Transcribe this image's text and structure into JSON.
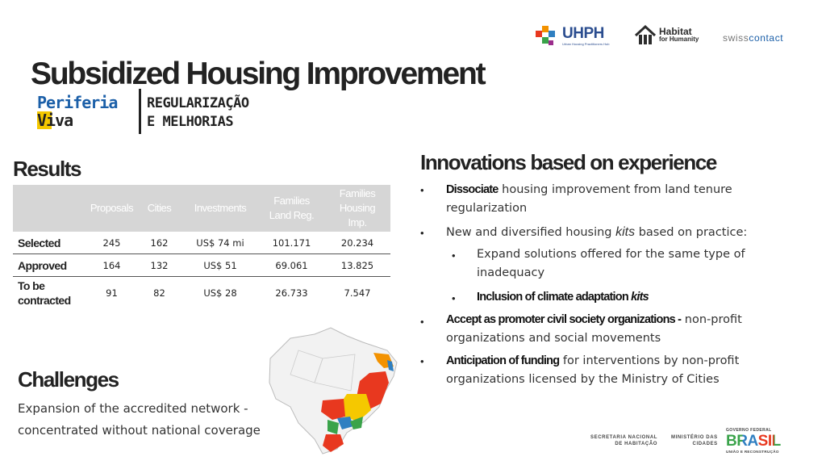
{
  "title": "Subsidized Housing Improvement",
  "brand": {
    "uhph": "UHPH",
    "uhph_sub": "Urban Housing Practitioners Hub",
    "habitat_line1": "Habitat",
    "habitat_line2": "for Humanity",
    "swiss_a": "swiss",
    "swiss_b": "contact",
    "periferia_line1": "Periferia",
    "periferia_line2": "Viva",
    "regularizacao_line1": "REGULARIZAÇÃO",
    "regularizacao_line2": "E MELHORIAS",
    "secretaria_line1": "SECRETARIA NACIONAL",
    "secretaria_line2": "DE HABITAÇÃO",
    "ministerio_line1": "MINISTÉRIO DAS",
    "ministerio_line2": "CIDADES",
    "governo": "GOVERNO FEDERAL",
    "brasil": "BRASIL",
    "uniao": "UNIÃO E RECONSTRUÇÃO"
  },
  "results": {
    "heading": "Results",
    "columns": [
      "",
      "Proposals",
      "Cities",
      "Investments",
      "Families Land Reg.",
      "Families Housing Imp."
    ],
    "rows": [
      {
        "label": "Selected",
        "proposals": "245",
        "cities": "162",
        "investments": "US$ 74 mi",
        "land": "101.171",
        "housing": "20.234"
      },
      {
        "label": "Approved",
        "proposals": "164",
        "cities": "132",
        "investments": "US$ 51",
        "land": "69.061",
        "housing": "13.825"
      },
      {
        "label": "To be contracted",
        "proposals": "91",
        "cities": "82",
        "investments": "US$ 28",
        "land": "26.733",
        "housing": "7.547"
      }
    ]
  },
  "challenges": {
    "heading": "Challenges",
    "line1": "Expansion of the accredited network -",
    "line2": "concentrated without national coverage"
  },
  "innovations": {
    "heading": "Innovations based on experience",
    "b1_bold": "Dissociate",
    "b1_rest": " housing improvement from land tenure regularization",
    "b2_a": "New and diversified housing ",
    "b2_kits": "kits",
    "b2_b": " based on practice:",
    "s1": "Expand solutions offered for the same type of inadequacy",
    "s2_bold": "Inclusion of climate adaptation ",
    "s2_kits": "kits",
    "b3_bold": "Accept as promoter civil society organizations -",
    "b3_rest": " non-profit organizations and social movements",
    "b4_bold": "Anticipation of funding",
    "b4_rest": " for interventions by non-profit organizations licensed by the Ministry of Cities"
  },
  "map": {
    "states_highlight": [
      "north-east",
      "center",
      "south-east",
      "south"
    ],
    "colors": [
      "#e8381f",
      "#f5c800",
      "#2f7fc1",
      "#3aa34a",
      "#f39200",
      "#e8381f"
    ]
  },
  "colors": {
    "header_gray": "#d6d6d6",
    "uhph_blue": "#2b4d8f",
    "habitat": "#2c2c2c",
    "swiss_blue": "#1b5fa8"
  }
}
